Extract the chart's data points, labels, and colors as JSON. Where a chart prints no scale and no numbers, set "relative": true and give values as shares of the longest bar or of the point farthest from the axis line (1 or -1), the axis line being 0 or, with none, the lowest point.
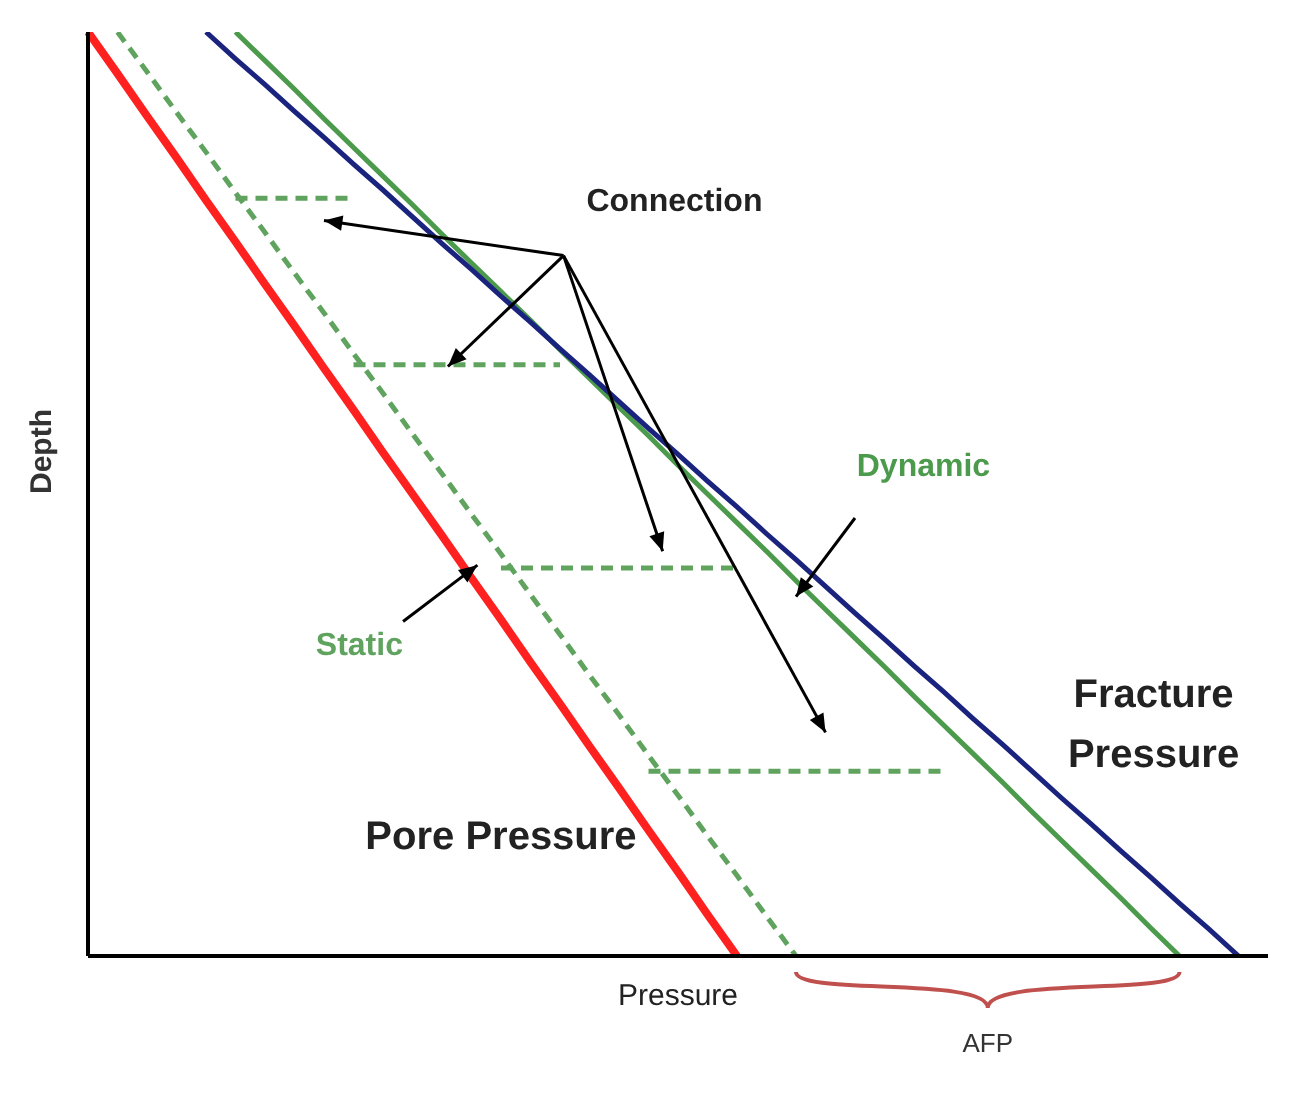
{
  "chart_data": {
    "type": "line",
    "relative": true,
    "xlabel": "Pressure",
    "ylabel": "Depth",
    "marker": "none",
    "categories": [
      null,
      null,
      null,
      null,
      null,
      null,
      null,
      null,
      null,
      null,
      null,
      null,
      null,
      null,
      null,
      null,
      null,
      null,
      null,
      null,
      null,
      null,
      null,
      null,
      null,
      null,
      null,
      null,
      null,
      null,
      null,
      null,
      null,
      null,
      null,
      null,
      null,
      null,
      null,
      null,
      null
    ],
    "series": [
      {
        "name": "Pore Pressure",
        "color": "#ff2020",
        "values": [
          1,
          0.955,
          0.909,
          0.864,
          0.818,
          0.773,
          0.727,
          0.682,
          0.636,
          0.591,
          0.545,
          0.5,
          0.455,
          0.409,
          0.364,
          0.318,
          0.273,
          0.227,
          0.182,
          0.136,
          0.091,
          0.045,
          0,
          null,
          null,
          null,
          null,
          null,
          null,
          null,
          null,
          null,
          null,
          null,
          null,
          null,
          null,
          null,
          null,
          null,
          null
        ]
      },
      {
        "name": "Static",
        "color": "#5fa35f",
        "line_style": "dashed",
        "values": [
          null,
          1,
          0.957,
          0.913,
          0.87,
          0.826,
          0.783,
          0.739,
          0.696,
          0.652,
          0.609,
          0.565,
          0.522,
          0.478,
          0.435,
          0.391,
          0.348,
          0.304,
          0.261,
          0.217,
          0.174,
          0.13,
          0.087,
          0.043,
          0,
          null,
          null,
          null,
          null,
          null,
          null,
          null,
          null,
          null,
          null,
          null,
          null,
          null,
          null,
          null,
          null
        ]
      },
      {
        "name": "Dynamic",
        "color": "#4c9a4c",
        "values": [
          null,
          null,
          null,
          null,
          null,
          1,
          0.969,
          0.938,
          0.906,
          0.875,
          0.844,
          0.813,
          0.781,
          0.75,
          0.719,
          0.688,
          0.656,
          0.625,
          0.594,
          0.563,
          0.531,
          0.5,
          0.469,
          0.438,
          0.406,
          0.375,
          0.344,
          0.313,
          0.281,
          0.25,
          0.219,
          0.188,
          0.156,
          0.125,
          0.094,
          0.063,
          0.031,
          0,
          null,
          null,
          null
        ]
      },
      {
        "name": "Fracture Pressure",
        "color": "#1a237e",
        "values": [
          null,
          null,
          null,
          null,
          1,
          0.971,
          0.943,
          0.914,
          0.886,
          0.857,
          0.829,
          0.8,
          0.771,
          0.743,
          0.714,
          0.686,
          0.657,
          0.629,
          0.6,
          0.571,
          0.543,
          0.514,
          0.486,
          0.457,
          0.429,
          0.4,
          0.371,
          0.343,
          0.314,
          0.286,
          0.257,
          0.229,
          0.2,
          0.171,
          0.143,
          0.114,
          0.086,
          0.057,
          0.029,
          0,
          null
        ]
      },
      {
        "color": "#5fa35f",
        "line_style": "dashed",
        "values": [
          null,
          null,
          null,
          null,
          null,
          0.82,
          0.82,
          0.82,
          0.82,
          0.82,
          null,
          null,
          null,
          null,
          null,
          null,
          null,
          null,
          null,
          null,
          null,
          null,
          null,
          null,
          null,
          null,
          null,
          null,
          null,
          null,
          null,
          null,
          null,
          null,
          null,
          null,
          null,
          null,
          null,
          null,
          null
        ]
      },
      {
        "color": "#5fa35f",
        "line_style": "dashed",
        "values": [
          null,
          null,
          null,
          null,
          null,
          null,
          null,
          null,
          null,
          0.64,
          0.64,
          0.64,
          0.64,
          0.64,
          0.64,
          0.64,
          0.64,
          null,
          null,
          null,
          null,
          null,
          null,
          null,
          null,
          null,
          null,
          null,
          null,
          null,
          null,
          null,
          null,
          null,
          null,
          null,
          null,
          null,
          null,
          null,
          null
        ]
      },
      {
        "color": "#5fa35f",
        "line_style": "dashed",
        "values": [
          null,
          null,
          null,
          null,
          null,
          null,
          null,
          null,
          null,
          null,
          null,
          null,
          null,
          null,
          0.42,
          0.42,
          0.42,
          0.42,
          0.42,
          0.42,
          0.42,
          0.42,
          0.42,
          null,
          null,
          null,
          null,
          null,
          null,
          null,
          null,
          null,
          null,
          null,
          null,
          null,
          null,
          null,
          null,
          null,
          null
        ]
      },
      {
        "color": "#5fa35f",
        "line_style": "dashed",
        "values": [
          null,
          null,
          null,
          null,
          null,
          null,
          null,
          null,
          null,
          null,
          null,
          null,
          null,
          null,
          null,
          null,
          null,
          null,
          null,
          0.2,
          0.2,
          0.2,
          0.2,
          0.2,
          0.2,
          0.2,
          0.2,
          0.2,
          0.2,
          0.2,
          null,
          null,
          null,
          null,
          null,
          null,
          null,
          null,
          null,
          null,
          null
        ]
      }
    ],
    "annotations": [
      "Connection",
      "AFP"
    ]
  }
}
